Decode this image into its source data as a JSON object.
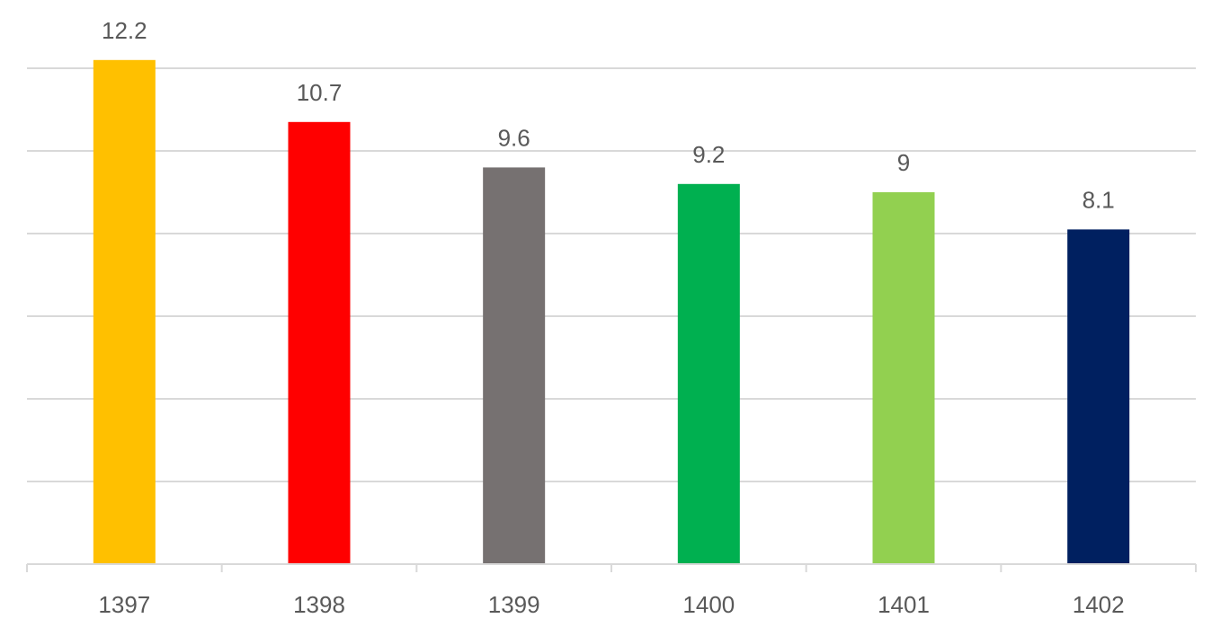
{
  "chart_data": {
    "type": "bar",
    "title": "",
    "xlabel": "",
    "ylabel": "",
    "categories": [
      "1397",
      "1398",
      "1399",
      "1400",
      "1401",
      "1402"
    ],
    "values": [
      12.2,
      10.7,
      9.6,
      9.2,
      9,
      8.1
    ],
    "value_labels": [
      "12.2",
      "10.7",
      "9.6",
      "9.2",
      "9",
      "8.1"
    ],
    "colors": [
      "#ffc000",
      "#ff0000",
      "#767171",
      "#00b050",
      "#92d050",
      "#002060"
    ],
    "ylim": [
      0,
      14
    ],
    "gridlines": [
      2,
      4,
      6,
      8,
      10,
      12
    ],
    "grid": true,
    "legend": false
  }
}
